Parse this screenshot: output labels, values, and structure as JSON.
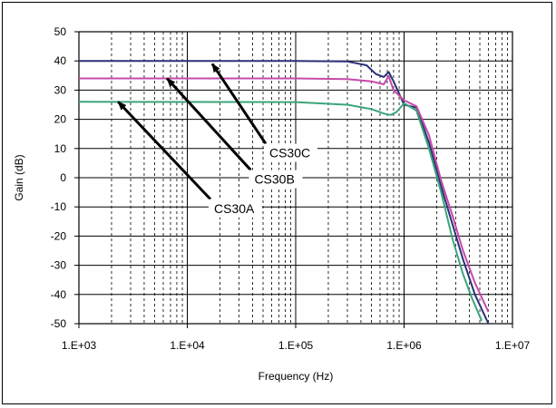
{
  "chart_data": {
    "type": "line",
    "xlabel": "Frequency (Hz)",
    "ylabel": "Gain (dB)",
    "x_scale": "log",
    "xlim": [
      1000,
      10000000
    ],
    "ylim": [
      -50,
      50
    ],
    "x_ticks": [
      "1.E+03",
      "1.E+04",
      "1.E+05",
      "1.E+06",
      "1.E+07"
    ],
    "y_ticks": [
      "50",
      "40",
      "30",
      "20",
      "10",
      "0",
      "-10",
      "-20",
      "-30",
      "-40",
      "-50"
    ],
    "grid": true,
    "series": [
      {
        "name": "CS30C",
        "color": "#2b2f7a",
        "points": [
          [
            1000,
            40
          ],
          [
            100000,
            40
          ],
          [
            300000,
            39.8
          ],
          [
            450000,
            38.5
          ],
          [
            550000,
            35.5
          ],
          [
            650000,
            34.5
          ],
          [
            720000,
            36.2
          ],
          [
            800000,
            33
          ],
          [
            1000000,
            25
          ],
          [
            1300000,
            24
          ],
          [
            1700000,
            12
          ],
          [
            2200000,
            -3
          ],
          [
            2800000,
            -16
          ],
          [
            3500000,
            -28
          ],
          [
            4500000,
            -40
          ],
          [
            6000000,
            -50
          ]
        ]
      },
      {
        "name": "CS30B",
        "color": "#c64aa8",
        "points": [
          [
            1000,
            34
          ],
          [
            100000,
            34
          ],
          [
            300000,
            33.8
          ],
          [
            500000,
            33
          ],
          [
            650000,
            32
          ],
          [
            720000,
            34.8
          ],
          [
            800000,
            30
          ],
          [
            1000000,
            26.5
          ],
          [
            1300000,
            24.5
          ],
          [
            1700000,
            14.5
          ],
          [
            2200000,
            -1
          ],
          [
            2800000,
            -13
          ],
          [
            3500000,
            -25
          ],
          [
            4500000,
            -36
          ],
          [
            6000000,
            -46
          ]
        ]
      },
      {
        "name": "CS30A",
        "color": "#3aa57a",
        "points": [
          [
            1000,
            26
          ],
          [
            100000,
            25.9
          ],
          [
            300000,
            25
          ],
          [
            500000,
            23.5
          ],
          [
            650000,
            22
          ],
          [
            750000,
            21.5
          ],
          [
            850000,
            22.5
          ],
          [
            1000000,
            25.5
          ],
          [
            1300000,
            23
          ],
          [
            1700000,
            10
          ],
          [
            2200000,
            -5
          ],
          [
            2800000,
            -21
          ],
          [
            3500000,
            -33
          ],
          [
            4200000,
            -41
          ],
          [
            5200000,
            -49
          ]
        ]
      }
    ],
    "annotations": [
      {
        "text": "CS30C",
        "x": 55000,
        "y": 11,
        "arrow_to": [
          17000,
          39
        ]
      },
      {
        "text": "CS30B",
        "x": 40000,
        "y": 2,
        "arrow_to": [
          6500,
          34
        ]
      },
      {
        "text": "CS30A",
        "x": 17000,
        "y": -8,
        "arrow_to": [
          2300,
          26
        ]
      }
    ]
  }
}
